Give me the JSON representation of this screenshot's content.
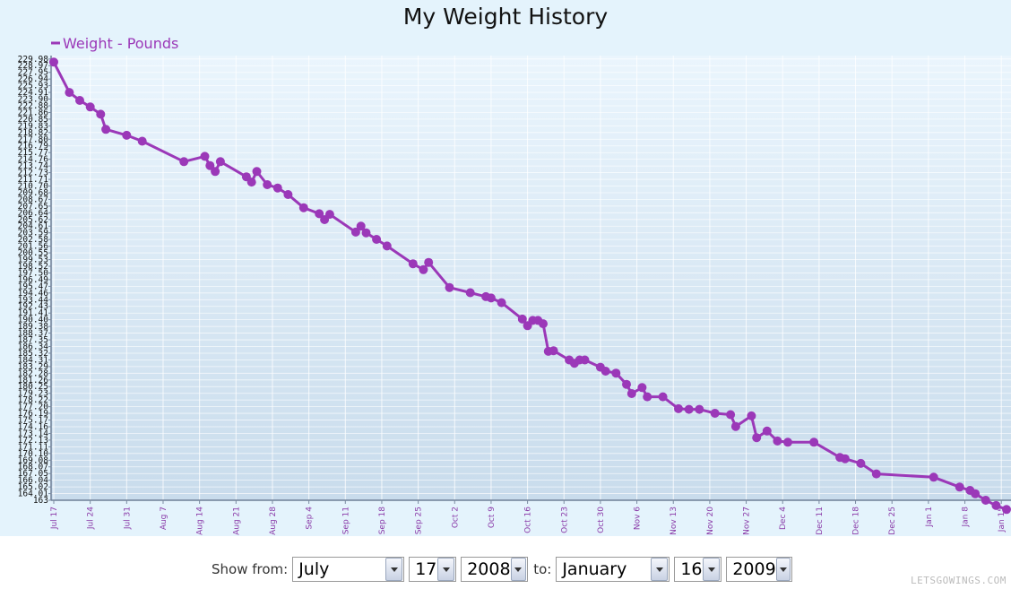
{
  "chart_data": {
    "type": "line",
    "title": "My Weight History",
    "legend": {
      "entries": [
        "Weight - Pounds"
      ],
      "position": "top-left"
    },
    "series": [
      {
        "name": "Weight - Pounds",
        "color": "#9b38b8",
        "dates": [
          "Jul 17",
          "Jul 20",
          "Jul 22",
          "Jul 24",
          "Jul 26",
          "Jul 27",
          "Jul 31",
          "Aug 3",
          "Aug 11",
          "Aug 15",
          "Aug 16",
          "Aug 17",
          "Aug 18",
          "Aug 23",
          "Aug 24",
          "Aug 25",
          "Aug 27",
          "Aug 29",
          "Aug 31",
          "Sep 3",
          "Sep 6",
          "Sep 7",
          "Sep 8",
          "Sep 13",
          "Sep 14",
          "Sep 15",
          "Sep 17",
          "Sep 19",
          "Sep 24",
          "Sep 26",
          "Sep 27",
          "Oct 1",
          "Oct 5",
          "Oct 8",
          "Oct 9",
          "Oct 11",
          "Oct 15",
          "Oct 16",
          "Oct 17",
          "Oct 18",
          "Oct 19",
          "Oct 20",
          "Oct 21",
          "Oct 24",
          "Oct 25",
          "Oct 26",
          "Oct 27",
          "Oct 30",
          "Oct 31",
          "Nov 2",
          "Nov 4",
          "Nov 5",
          "Nov 7",
          "Nov 8",
          "Nov 11",
          "Nov 14",
          "Nov 16",
          "Nov 18",
          "Nov 21",
          "Nov 24",
          "Nov 25",
          "Nov 28",
          "Nov 29",
          "Dec 1",
          "Dec 3",
          "Dec 5",
          "Dec 10",
          "Dec 15",
          "Dec 16",
          "Dec 19",
          "Dec 22",
          "Jan 2",
          "Jan 7",
          "Jan 9",
          "Jan 10",
          "Jan 12",
          "Jan 14",
          "Jan 16"
        ],
        "values": [
          229.5,
          224.9,
          223.7,
          222.7,
          221.6,
          219.3,
          218.4,
          217.5,
          214.4,
          215.2,
          213.8,
          212.9,
          214.4,
          212.1,
          211.3,
          212.9,
          210.9,
          210.4,
          209.4,
          207.4,
          206.5,
          205.6,
          206.4,
          203.7,
          204.6,
          203.6,
          202.6,
          201.6,
          198.9,
          198.0,
          199.1,
          195.3,
          194.5,
          193.9,
          193.7,
          193.0,
          190.5,
          189.5,
          190.3,
          190.3,
          189.8,
          185.6,
          185.7,
          184.3,
          183.8,
          184.3,
          184.3,
          183.2,
          182.6,
          182.3,
          180.6,
          179.2,
          180.1,
          178.7,
          178.7,
          176.9,
          176.8,
          176.8,
          176.2,
          176.0,
          174.2,
          175.8,
          172.5,
          173.5,
          172.0,
          171.8,
          171.8,
          169.5,
          169.3,
          168.6,
          167.0,
          166.5,
          165.0,
          164.5,
          164.0,
          163.0,
          162.2,
          161.6
        ],
        "values_note_removed": true
      }
    ],
    "x_ticks": [
      "Jul 17",
      "Jul 24",
      "Jul 31",
      "Aug 7",
      "Aug 14",
      "Aug 21",
      "Aug 28",
      "Sep 4",
      "Sep 11",
      "Sep 18",
      "Sep 25",
      "Oct 2",
      "Oct 9",
      "Oct 16",
      "Oct 23",
      "Oct 30",
      "Nov 6",
      "Nov 13",
      "Nov 20",
      "Nov 27",
      "Dec 4",
      "Dec 11",
      "Dec 18",
      "Dec 25",
      "Jan 1",
      "Jan 8",
      "Jan 15"
    ],
    "y_ticks": [
      "229.98",
      "228.97",
      "227.95",
      "226.94",
      "225.93",
      "224.91",
      "223.90",
      "222.88",
      "221.86",
      "220.85",
      "219.83",
      "218.82",
      "217.80",
      "216.79",
      "215.77",
      "214.76",
      "213.74",
      "212.73",
      "211.71",
      "210.70",
      "209.68",
      "208.67",
      "207.65",
      "206.64",
      "205.62",
      "204.61",
      "203.59",
      "202.58",
      "201.56",
      "200.55",
      "199.53",
      "198.52",
      "197.50",
      "196.49",
      "195.47",
      "194.46",
      "193.44",
      "192.43",
      "191.41",
      "190.40",
      "189.38",
      "188.37",
      "187.35",
      "186.34",
      "185.32",
      "184.31",
      "183.29",
      "182.28",
      "181.26",
      "180.25",
      "179.23",
      "178.22",
      "177.20",
      "176.19",
      "175.17",
      "174.16",
      "173.14",
      "172.13",
      "171.11",
      "170.10",
      "169.08",
      "168.07",
      "167.05",
      "166.04",
      "165.02",
      "164.01",
      "163"
    ],
    "ylim": [
      163,
      230.5
    ],
    "xlim": [
      "Jul 17",
      "Jan 16"
    ],
    "grid": true
  },
  "controls": {
    "show_from_label": "Show from:",
    "to_label": "to:",
    "from_month": "July",
    "from_day": "17",
    "from_year": "2008",
    "to_month": "January",
    "to_day": "16",
    "to_year": "2009"
  },
  "watermark": "LETSGOWINGS.COM"
}
